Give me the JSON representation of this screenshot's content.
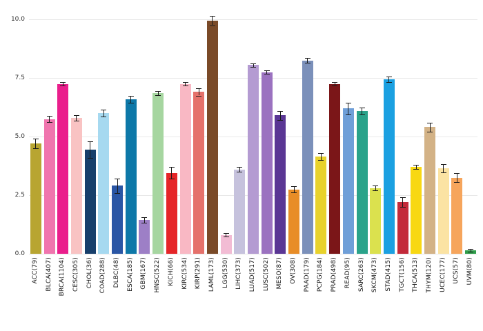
{
  "chart_data": {
    "type": "bar",
    "title": "",
    "xlabel": "",
    "ylabel": "",
    "grid": true,
    "legend": false,
    "ylim": [
      0,
      10.3
    ],
    "yticks": [
      0,
      2.5,
      5,
      7.5,
      10
    ],
    "ytick_labels": [
      "0.0",
      "2.5",
      "5.0",
      "7.5",
      "10.0"
    ],
    "error_bar_color": "#1a1a1a",
    "gridline_color": "#e8e8e8",
    "categories": [
      "ACC(79)",
      "BLCA(407)",
      "BRCA(1104)",
      "CESC(305)",
      "CHOL(36)",
      "COAD(288)",
      "DLBC(48)",
      "ESCA(185)",
      "GBM(167)",
      "HNSC(522)",
      "KICH(66)",
      "KIRC(534)",
      "KIRP(291)",
      "LAML(173)",
      "LGG(530)",
      "LIHC(373)",
      "LUAD(517)",
      "LUSC(502)",
      "MESO(87)",
      "OV(308)",
      "PAAD(179)",
      "PCPG(184)",
      "PRAD(498)",
      "READ(95)",
      "SARC(263)",
      "SKCM(473)",
      "STAD(415)",
      "TGCT(156)",
      "THCA(513)",
      "THYM(120)",
      "UCEC(177)",
      "UCS(57)",
      "UVM(80)"
    ],
    "values": [
      4.7,
      5.75,
      7.25,
      5.8,
      4.45,
      6.0,
      2.9,
      6.6,
      1.45,
      6.85,
      3.45,
      7.25,
      6.9,
      9.95,
      0.8,
      3.6,
      8.05,
      7.75,
      5.9,
      2.75,
      8.25,
      4.15,
      7.25,
      6.2,
      6.1,
      2.8,
      7.45,
      2.2,
      3.7,
      5.4,
      3.65,
      3.25,
      0.15
    ],
    "errors": [
      0.2,
      0.12,
      0.07,
      0.12,
      0.35,
      0.15,
      0.3,
      0.15,
      0.12,
      0.08,
      0.25,
      0.08,
      0.15,
      0.2,
      0.07,
      0.1,
      0.08,
      0.08,
      0.2,
      0.12,
      0.1,
      0.15,
      0.08,
      0.25,
      0.15,
      0.1,
      0.12,
      0.2,
      0.08,
      0.18,
      0.18,
      0.2,
      0.05
    ],
    "colors": [
      "#b8a531",
      "#f075ae",
      "#ea1e8c",
      "#f9c3c3",
      "#173f6b",
      "#a6d9f0",
      "#2a56a5",
      "#0d78a8",
      "#9d7fc6",
      "#a6d6a0",
      "#e52528",
      "#f9b8c4",
      "#e5716b",
      "#7a4a28",
      "#f2bcd4",
      "#c6c2dd",
      "#b49bd2",
      "#9b72c0",
      "#5a3694",
      "#e88d27",
      "#7b90ba",
      "#e8d22c",
      "#7b1618",
      "#6f9fd8",
      "#2aa38a",
      "#dbe14e",
      "#1ba0e1",
      "#c32a3a",
      "#f8d812",
      "#d3b286",
      "#fbe3a3",
      "#f6a55c",
      "#2f9e4a"
    ]
  }
}
